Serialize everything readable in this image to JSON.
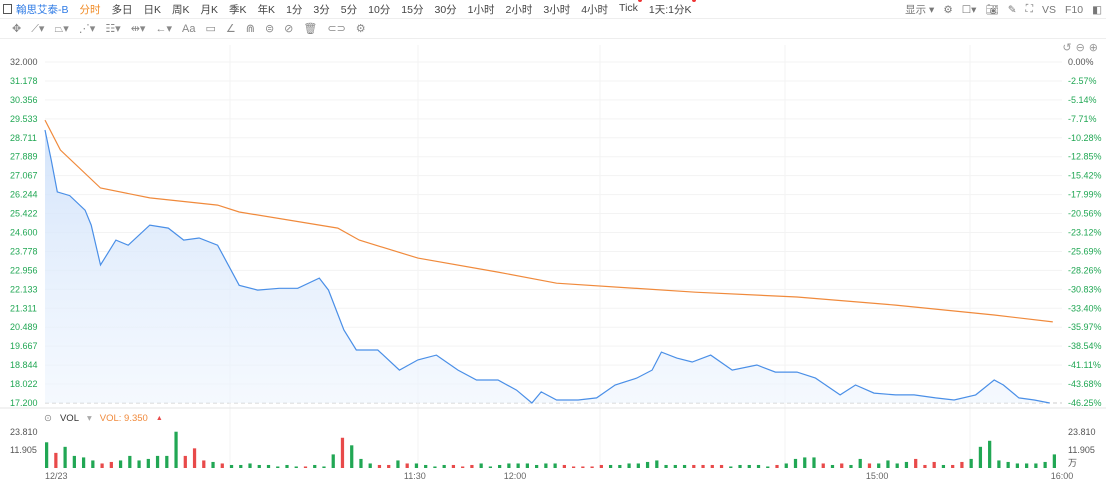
{
  "toolbar": {
    "title": "翰思艾泰-B",
    "periods": [
      "分时",
      "多日",
      "日K",
      "周K",
      "月K",
      "季K",
      "年K",
      "1分",
      "3分",
      "5分",
      "10分",
      "15分",
      "30分",
      "1小时",
      "2小时",
      "3小时",
      "4小时",
      "Tick",
      "1天:1分K"
    ],
    "active_period": "分时",
    "right": {
      "display_label": "显示",
      "vs_label": "VS",
      "f10_label": "F10"
    },
    "draw_tools": [
      "move-icon",
      "line-icon",
      "polyline-icon",
      "wave-icon",
      "fib-icon",
      "range-icon",
      "arrow-icon",
      "text-icon",
      "note-icon",
      "brush-icon",
      "magnet-icon",
      "lock-icon",
      "eye-icon",
      "delete-icon",
      "link-icon",
      "settings-icon"
    ],
    "text_tool_label": "Aa"
  },
  "colors": {
    "price": "#4a8fe7",
    "average": "#f08a3c",
    "up": "#e84a4a",
    "down": "#21a754",
    "axis_down": "#21a754"
  },
  "chart_data": {
    "type": "line",
    "prev_close": 32.0,
    "y_ticks": [
      "32.000",
      "31.178",
      "30.356",
      "29.533",
      "28.711",
      "27.889",
      "27.067",
      "26.244",
      "25.422",
      "24.600",
      "23.778",
      "22.956",
      "22.133",
      "21.311",
      "20.489",
      "19.667",
      "18.844",
      "18.022",
      "17.200"
    ],
    "pct_ticks": [
      "0.00%",
      "-2.57%",
      "-5.14%",
      "-7.71%",
      "-10.28%",
      "-12.85%",
      "-15.42%",
      "-17.99%",
      "-20.56%",
      "-23.12%",
      "-25.69%",
      "-28.26%",
      "-30.83%",
      "-33.40%",
      "-35.97%",
      "-38.54%",
      "-41.11%",
      "-43.68%",
      "-46.25%"
    ],
    "ylim": [
      17.2,
      32.0
    ],
    "x_ticks": [
      {
        "t": "09:30",
        "label": "12/23"
      },
      {
        "t": "11:30",
        "label": "11:30"
      },
      {
        "t": "12:00",
        "label": "12:00"
      },
      {
        "t": "15:00",
        "label": "15:00"
      },
      {
        "t": "16:00",
        "label": "16:00"
      }
    ],
    "sessions": [
      [
        "09:30",
        "12:00"
      ],
      [
        "13:00",
        "16:00"
      ]
    ],
    "price": [
      [
        "09:30",
        29.05
      ],
      [
        "09:32",
        27.75
      ],
      [
        "09:34",
        26.36
      ],
      [
        "09:38",
        26.2
      ],
      [
        "09:43",
        25.57
      ],
      [
        "09:45",
        24.92
      ],
      [
        "09:48",
        23.19
      ],
      [
        "09:53",
        24.27
      ],
      [
        "09:57",
        24.05
      ],
      [
        "10:04",
        24.92
      ],
      [
        "10:10",
        24.79
      ],
      [
        "10:15",
        24.27
      ],
      [
        "10:20",
        24.36
      ],
      [
        "10:26",
        24.05
      ],
      [
        "10:33",
        22.31
      ],
      [
        "10:39",
        22.1
      ],
      [
        "10:46",
        22.18
      ],
      [
        "10:52",
        22.18
      ],
      [
        "10:59",
        22.62
      ],
      [
        "11:02",
        22.1
      ],
      [
        "11:07",
        20.37
      ],
      [
        "11:11",
        19.5
      ],
      [
        "11:18",
        19.5
      ],
      [
        "11:25",
        18.63
      ],
      [
        "11:31",
        19.07
      ],
      [
        "11:37",
        19.28
      ],
      [
        "11:44",
        18.63
      ],
      [
        "11:50",
        18.2
      ],
      [
        "11:57",
        18.2
      ],
      [
        "13:03",
        17.76
      ],
      [
        "13:08",
        17.2
      ],
      [
        "13:11",
        17.68
      ],
      [
        "13:16",
        17.33
      ],
      [
        "13:23",
        17.33
      ],
      [
        "13:29",
        17.42
      ],
      [
        "13:35",
        17.98
      ],
      [
        "13:42",
        18.28
      ],
      [
        "13:47",
        18.63
      ],
      [
        "13:50",
        19.41
      ],
      [
        "13:55",
        19.15
      ],
      [
        "14:00",
        18.98
      ],
      [
        "14:06",
        19.28
      ],
      [
        "14:13",
        18.63
      ],
      [
        "14:21",
        18.85
      ],
      [
        "14:27",
        18.54
      ],
      [
        "14:34",
        18.54
      ],
      [
        "14:40",
        18.28
      ],
      [
        "14:48",
        17.55
      ],
      [
        "14:53",
        17.98
      ],
      [
        "14:59",
        17.63
      ],
      [
        "15:06",
        17.55
      ],
      [
        "15:12",
        17.55
      ],
      [
        "15:19",
        17.42
      ],
      [
        "15:25",
        17.33
      ],
      [
        "15:32",
        17.55
      ],
      [
        "15:38",
        18.2
      ],
      [
        "15:41",
        17.98
      ],
      [
        "15:46",
        17.42
      ],
      [
        "15:51",
        17.33
      ],
      [
        "15:56",
        17.2
      ]
    ],
    "average": [
      [
        "09:30",
        29.48
      ],
      [
        "09:35",
        28.18
      ],
      [
        "09:48",
        26.53
      ],
      [
        "10:04",
        26.1
      ],
      [
        "10:26",
        25.79
      ],
      [
        "10:33",
        25.49
      ],
      [
        "11:05",
        24.79
      ],
      [
        "11:12",
        24.27
      ],
      [
        "11:31",
        23.49
      ],
      [
        "11:57",
        22.88
      ],
      [
        "13:16",
        22.4
      ],
      [
        "14:01",
        22.01
      ],
      [
        "14:34",
        21.8
      ],
      [
        "15:06",
        21.45
      ],
      [
        "15:38",
        21.02
      ],
      [
        "15:57",
        20.72
      ]
    ],
    "volume": {
      "label": "VOL",
      "value_label": "VOL: 9.350",
      "unit": "万",
      "y_ticks": [
        "23.810",
        "11.905"
      ],
      "ymax": 23.81,
      "values": [
        17,
        10,
        14,
        8,
        7,
        5,
        3,
        4,
        5,
        8,
        5,
        6,
        8,
        8,
        24,
        8,
        13,
        5,
        4,
        3,
        2,
        2,
        3,
        2,
        2,
        1,
        2,
        1,
        1,
        2,
        1,
        9,
        20,
        15,
        6,
        3,
        2,
        2,
        5,
        3,
        3,
        2,
        1,
        2,
        2,
        1,
        2,
        3,
        1,
        2,
        3,
        3,
        3,
        2,
        3,
        3,
        2,
        1,
        1,
        1,
        2,
        2,
        2,
        3,
        3,
        4,
        5,
        2,
        2,
        2,
        2,
        2,
        2,
        2,
        1,
        2,
        2,
        2,
        1,
        2,
        3,
        6,
        7,
        7,
        3,
        2,
        3,
        2,
        6,
        3,
        3,
        5,
        3,
        4,
        6,
        2,
        4,
        2,
        2,
        4,
        6,
        14,
        18,
        5,
        4,
        3,
        3,
        3,
        4,
        9
      ],
      "dirs": "gr gggrrgggggggrrrgrggggggggrgggrgggrrgrggggrrrgggggggggrrrrrgggggggggrrrrgggggrggggrgrggrggggrrrgrrggggggg"
    }
  }
}
